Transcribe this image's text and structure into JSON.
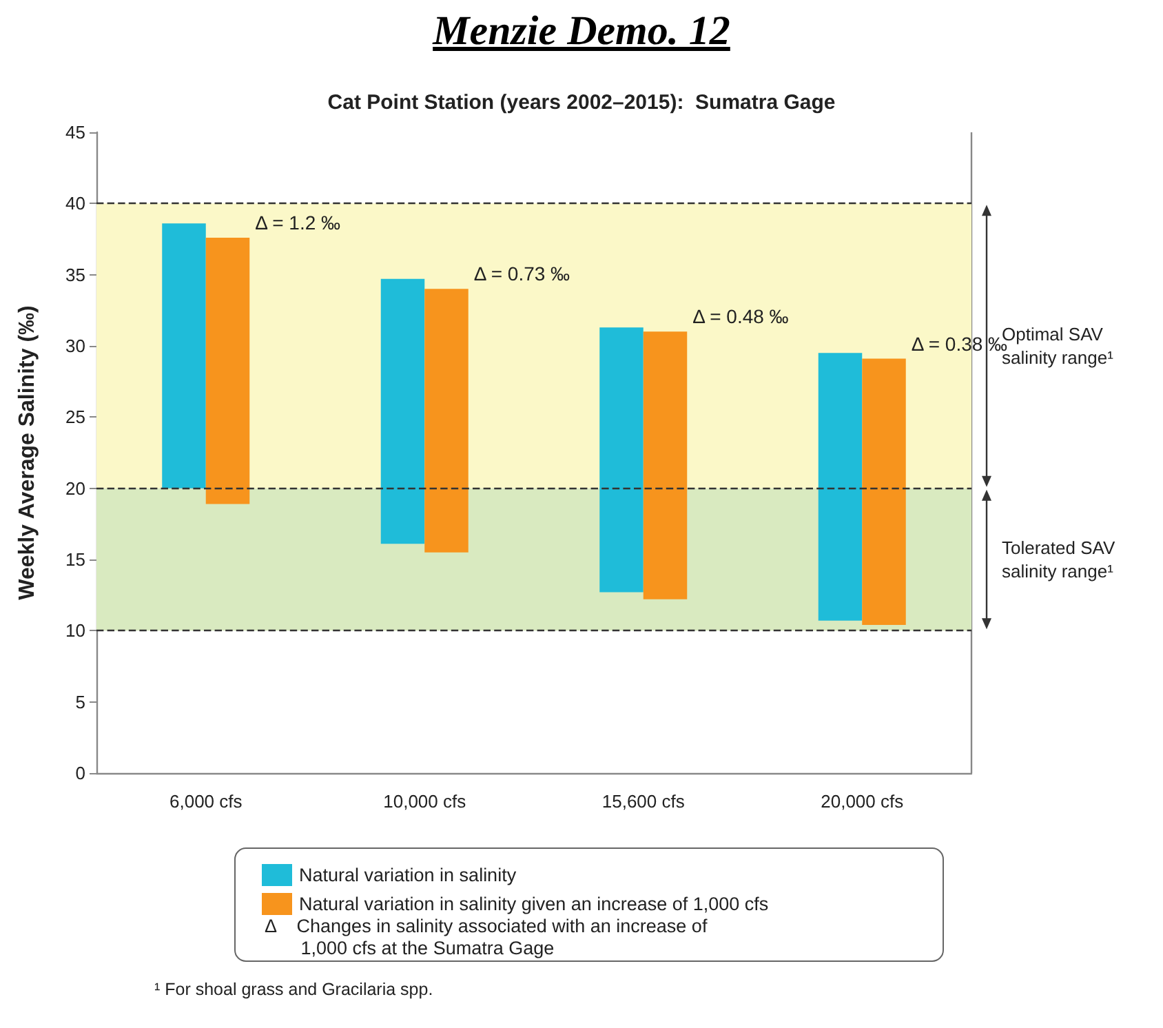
{
  "chart_data": {
    "type": "bar",
    "title": "Menzie Demo. 12",
    "subtitle": "Cat Point Station (years 2002–2015):  Sumatra Gage",
    "ylabel": "Weekly Average Salinity (‰)",
    "categories": [
      "6,000 cfs",
      "10,000 cfs",
      "15,600 cfs",
      "20,000 cfs"
    ],
    "series": [
      {
        "name": "Natural variation in salinity",
        "color": "#1fbcd9",
        "base": [
          20,
          16.1,
          12.7,
          10.7
        ],
        "values": [
          18.6,
          18.6,
          18.6,
          18.8
        ]
      },
      {
        "name": "Natural variation in salinity given an increase of 1,000 cfs",
        "color": "#f7941d",
        "base": [
          18.9,
          15.5,
          12.2,
          10.4
        ],
        "values": [
          18.7,
          18.5,
          18.8,
          18.7
        ]
      }
    ],
    "ylim": [
      0,
      45
    ],
    "yticks": [
      0,
      5,
      10,
      15,
      20,
      25,
      30,
      35,
      40,
      45
    ],
    "grid": false,
    "legend": "bottom",
    "bands": [
      {
        "axis": "y",
        "from": 20,
        "to": 40,
        "label": "Optimal SAV salinity range¹",
        "color": "#fbf8c8"
      },
      {
        "axis": "y",
        "from": 10,
        "to": 20,
        "label": "Tolerated SAV salinity range¹",
        "color": "#d9eac0"
      }
    ],
    "ref_lines": [
      {
        "axis": "y",
        "value": 40,
        "line_style": "dashed",
        "color": "#333333"
      },
      {
        "axis": "y",
        "value": 20,
        "line_style": "dashed",
        "color": "#333333"
      },
      {
        "axis": "y",
        "value": 10,
        "line_style": "dashed",
        "color": "#333333"
      }
    ],
    "annotations": [
      {
        "text": "Δ = 1.2 ‰",
        "x": "6,000 cfs",
        "y": 37.6
      },
      {
        "text": "Δ = 0.73 ‰",
        "x": "10,000 cfs",
        "y": 34.0
      },
      {
        "text": "Δ = 0.48 ‰",
        "x": "15,600 cfs",
        "y": 31.0
      },
      {
        "text": "Δ = 0.38 ‰",
        "x": "20,000 cfs",
        "y": 29.1
      },
      "Δ    Changes in salinity associated with an increase of\n       1,000 cfs at the Sumatra Gage",
      "¹ For shoal grass and Gracilaria spp."
    ]
  }
}
